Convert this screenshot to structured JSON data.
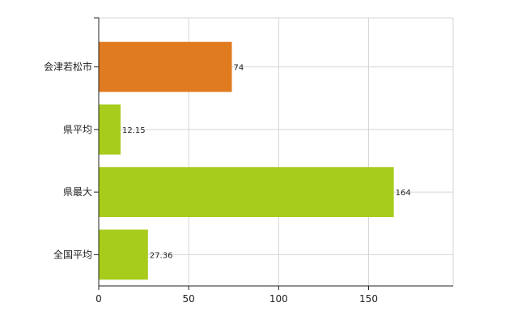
{
  "chart_data": {
    "type": "bar",
    "orientation": "horizontal",
    "categories": [
      "会津若松市",
      "県平均",
      "県最大",
      "全国平均"
    ],
    "values": [
      74,
      12.15,
      164,
      27.36
    ],
    "data_labels": [
      "74",
      "12.15",
      "164",
      "27.36"
    ],
    "bar_colors": [
      "#e07b20",
      "#a8cc1c",
      "#a8cc1c",
      "#a8cc1c"
    ],
    "xlim": [
      0,
      197
    ],
    "xticks": [
      0,
      50,
      100,
      150
    ],
    "grid": true,
    "legend": "none",
    "title": "",
    "xlabel": "",
    "ylabel": ""
  }
}
